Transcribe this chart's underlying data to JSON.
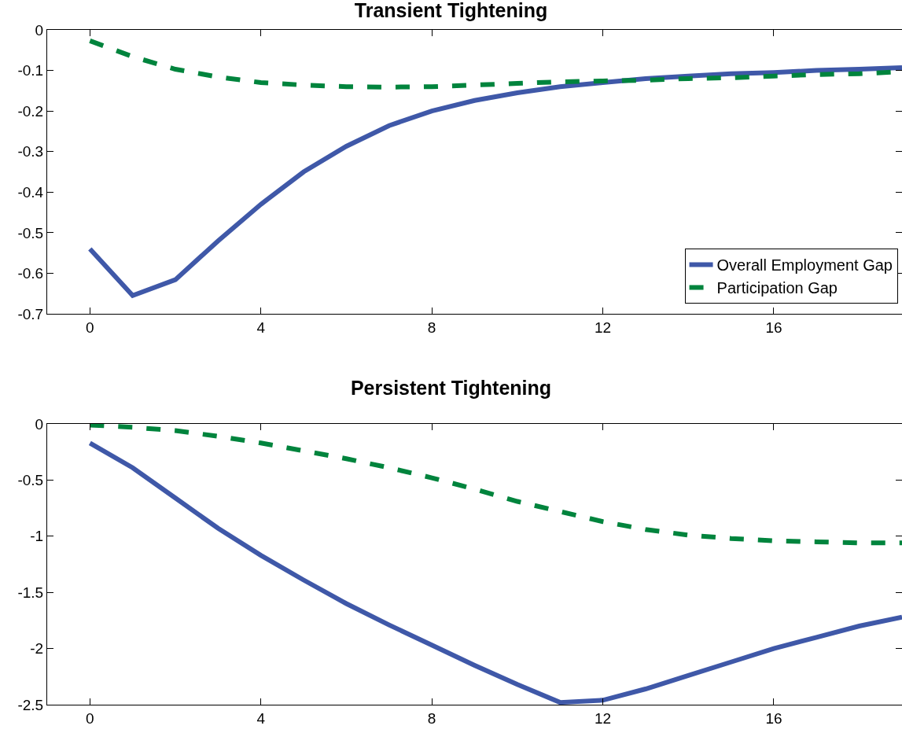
{
  "chart_data": [
    {
      "type": "line",
      "title": "Transient Tightening",
      "x": [
        0,
        1,
        2,
        3,
        4,
        5,
        6,
        7,
        8,
        9,
        10,
        11,
        12,
        13,
        14,
        15,
        16,
        17,
        18,
        19
      ],
      "xlim": [
        -1,
        19
      ],
      "xticks": [
        0,
        4,
        8,
        12,
        16
      ],
      "ylim": [
        -0.7,
        0
      ],
      "yticks": [
        -0.7,
        -0.6,
        -0.5,
        -0.4,
        -0.3,
        -0.2,
        -0.1,
        0
      ],
      "grid": false,
      "legend": "bottom right",
      "series": [
        {
          "name": "Overall Employment Gap",
          "color": "#3f58a8",
          "line_style": "solid",
          "values": [
            -0.54,
            -0.655,
            -0.616,
            -0.52,
            -0.43,
            -0.35,
            -0.287,
            -0.236,
            -0.2,
            -0.174,
            -0.155,
            -0.14,
            -0.13,
            -0.12,
            -0.114,
            -0.108,
            -0.105,
            -0.1,
            -0.097,
            -0.093
          ]
        },
        {
          "name": "Participation Gap",
          "color": "#00843d",
          "line_style": "dashed",
          "values": [
            -0.027,
            -0.066,
            -0.097,
            -0.116,
            -0.13,
            -0.136,
            -0.14,
            -0.141,
            -0.14,
            -0.136,
            -0.132,
            -0.128,
            -0.126,
            -0.124,
            -0.12,
            -0.118,
            -0.114,
            -0.11,
            -0.108,
            -0.103
          ]
        }
      ]
    },
    {
      "type": "line",
      "title": "Persistent Tightening",
      "x": [
        0,
        1,
        2,
        3,
        4,
        5,
        6,
        7,
        8,
        9,
        10,
        11,
        12,
        13,
        14,
        15,
        16,
        17,
        18,
        19
      ],
      "xlim": [
        -1,
        19
      ],
      "xticks": [
        0,
        4,
        8,
        12,
        16
      ],
      "ylim": [
        -2.5,
        0
      ],
      "yticks": [
        -2.5,
        -2,
        -1.5,
        -1,
        -0.5,
        0
      ],
      "grid": false,
      "legend": false,
      "series": [
        {
          "color": "#3f58a8",
          "line_style": "solid",
          "values": [
            -0.17,
            -0.39,
            -0.66,
            -0.93,
            -1.17,
            -1.39,
            -1.6,
            -1.79,
            -1.97,
            -2.15,
            -2.32,
            -2.48,
            -2.46,
            -2.36,
            -2.24,
            -2.12,
            -2.0,
            -1.9,
            -1.8,
            -1.72
          ]
        },
        {
          "color": "#00843d",
          "line_style": "dashed",
          "values": [
            -0.01,
            -0.03,
            -0.06,
            -0.11,
            -0.17,
            -0.24,
            -0.31,
            -0.39,
            -0.48,
            -0.58,
            -0.69,
            -0.78,
            -0.87,
            -0.94,
            -0.99,
            -1.02,
            -1.04,
            -1.05,
            -1.06,
            -1.06
          ]
        }
      ]
    }
  ]
}
